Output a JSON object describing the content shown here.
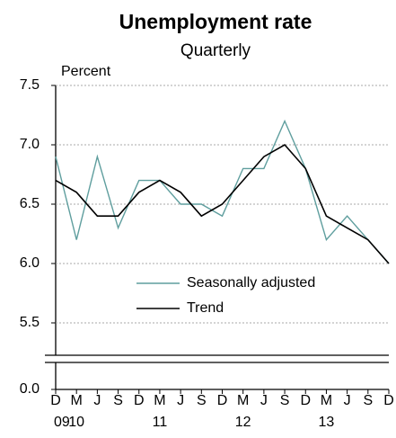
{
  "chart_data": {
    "type": "line",
    "title": "Unemployment rate",
    "subtitle": "Quarterly",
    "y_axis_label": "Percent",
    "categories": [
      "D",
      "M",
      "J",
      "S",
      "D",
      "M",
      "J",
      "S",
      "D",
      "M",
      "J",
      "S",
      "D",
      "M",
      "J",
      "S",
      "D"
    ],
    "year_labels": [
      "09",
      "10",
      null,
      null,
      null,
      "11",
      null,
      null,
      null,
      "12",
      null,
      null,
      null,
      "13",
      null,
      null,
      null
    ],
    "series": [
      {
        "name": "Seasonally adjusted",
        "color": "#5f9e9e",
        "values": [
          6.9,
          6.2,
          6.9,
          6.3,
          6.7,
          6.7,
          6.5,
          6.5,
          6.4,
          6.8,
          6.8,
          7.2,
          6.8,
          6.2,
          6.4,
          6.2,
          6.0
        ]
      },
      {
        "name": "Trend",
        "color": "#000000",
        "values": [
          6.7,
          6.6,
          6.4,
          6.4,
          6.6,
          6.7,
          6.6,
          6.4,
          6.5,
          6.7,
          6.9,
          7.0,
          6.8,
          6.4,
          6.3,
          6.2,
          6.0
        ]
      }
    ],
    "ylim": [
      5.25,
      7.5
    ],
    "yticks": [
      {
        "value": 0,
        "label": "0.0"
      },
      5.5,
      {
        "value": 6,
        "label": "6.0"
      },
      6.5,
      {
        "value": 7,
        "label": "7.0"
      },
      7.5
    ],
    "axis_break": true,
    "grid": true
  }
}
